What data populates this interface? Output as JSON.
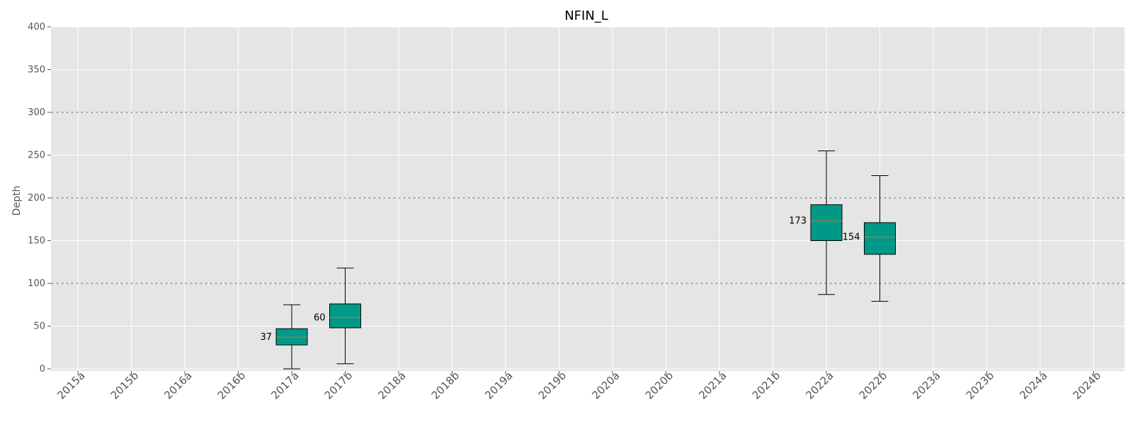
{
  "chart_data": {
    "type": "box",
    "title": "NFIN_L",
    "xlabel": "",
    "ylabel": "Depth",
    "ylim": [
      0,
      400
    ],
    "yticks": [
      0,
      50,
      100,
      150,
      200,
      250,
      300,
      350,
      400
    ],
    "reference_lines": [
      100,
      200,
      300
    ],
    "grid": true,
    "categories": [
      "2015a",
      "2015b",
      "2016a",
      "2016b",
      "2017a",
      "2017b",
      "2018a",
      "2018b",
      "2019a",
      "2019b",
      "2020a",
      "2020b",
      "2021a",
      "2021b",
      "2022a",
      "2022b",
      "2023a",
      "2023b",
      "2024a",
      "2024b"
    ],
    "boxes": [
      {
        "category": "2017a",
        "whisker_low": 0,
        "q1": 28,
        "median": 37,
        "q3": 47,
        "whisker_high": 75,
        "label": "37"
      },
      {
        "category": "2017b",
        "whisker_low": 6,
        "q1": 48,
        "median": 60,
        "q3": 76,
        "whisker_high": 118,
        "label": "60"
      },
      {
        "category": "2022a",
        "whisker_low": 87,
        "q1": 150,
        "median": 173,
        "q3": 192,
        "whisker_high": 255,
        "label": "173"
      },
      {
        "category": "2022b",
        "whisker_low": 79,
        "q1": 134,
        "median": 154,
        "q3": 171,
        "whisker_high": 226,
        "label": "154"
      }
    ],
    "colors": {
      "box_fill": "#009988",
      "median_line": "#c87137",
      "plot_background": "#e5e5e5",
      "grid": "#ffffff",
      "reference_line": "#808080"
    }
  }
}
